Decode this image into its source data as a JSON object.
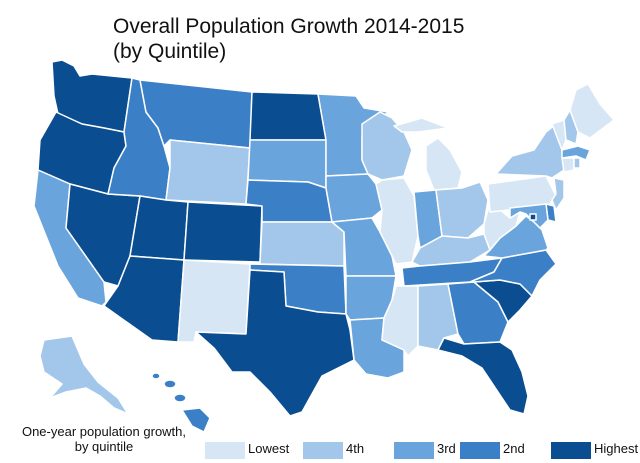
{
  "title": {
    "line1": "Overall Population Growth 2014-2015",
    "line2": "(by Quintile)"
  },
  "legend": {
    "caption_line1": "One-year population growth,",
    "caption_line2": "by quintile",
    "items": [
      {
        "label": "Lowest",
        "color": "#d6e6f5"
      },
      {
        "label": "4th",
        "color": "#a3c7ea"
      },
      {
        "label": "3rd",
        "color": "#6aa4dc"
      },
      {
        "label": "2nd",
        "color": "#3b80c6"
      },
      {
        "label": "Highest",
        "color": "#0b4d91"
      }
    ]
  },
  "map_data": {
    "type": "choropleth",
    "quintiles": [
      "Lowest",
      "4th",
      "3rd",
      "2nd",
      "Highest"
    ],
    "states": {
      "WA": "Highest",
      "OR": "Highest",
      "CA": "3rd",
      "NV": "Highest",
      "ID": "2nd",
      "MT": "2nd",
      "WY": "4th",
      "UT": "Highest",
      "AZ": "Highest",
      "CO": "Highest",
      "NM": "Lowest",
      "ND": "Highest",
      "SD": "3rd",
      "NE": "2nd",
      "KS": "4th",
      "OK": "2nd",
      "TX": "Highest",
      "MN": "3rd",
      "IA": "3rd",
      "MO": "3rd",
      "AR": "3rd",
      "LA": "3rd",
      "WI": "4th",
      "IL": "Lowest",
      "MI": "Lowest",
      "IN": "3rd",
      "OH": "4th",
      "KY": "4th",
      "TN": "2nd",
      "MS": "Lowest",
      "AL": "4th",
      "GA": "2nd",
      "FL": "Highest",
      "SC": "Highest",
      "NC": "2nd",
      "VA": "3rd",
      "WV": "Lowest",
      "PA": "Lowest",
      "NY": "4th",
      "VT": "Lowest",
      "NH": "4th",
      "ME": "Lowest",
      "MA": "3rd",
      "CT": "Lowest",
      "RI": "4th",
      "NJ": "4th",
      "DE": "2nd",
      "MD": "3rd",
      "DC": "Highest",
      "AK": "4th",
      "HI": "2nd"
    }
  }
}
